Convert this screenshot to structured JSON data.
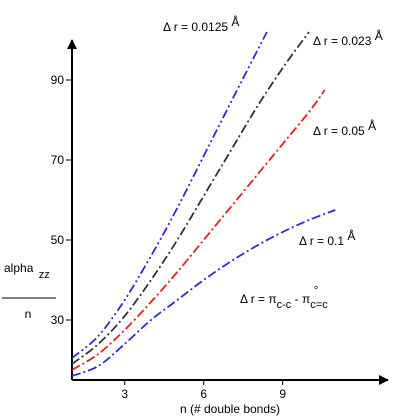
{
  "chart_data": {
    "type": "line",
    "xlabel": "n (# double bonds)",
    "ylabel_top": "alpha",
    "ylabel_top_sub": "zz",
    "ylabel_bottom": "n",
    "xlim": [
      1,
      13
    ],
    "ylim": [
      15,
      100
    ],
    "x_ticks": [
      3,
      6,
      9
    ],
    "y_ticks": [
      30,
      50,
      70,
      90
    ],
    "grid": false,
    "series": [
      {
        "name": "Δ r = 0.0125 Å",
        "color": "#2a2ad6",
        "dash": "9,3,2,3,2,3",
        "x": [
          1,
          2,
          3,
          4,
          5,
          6,
          7,
          8.4
        ],
        "y": [
          20.5,
          26,
          35,
          46,
          58,
          71,
          84,
          102
        ]
      },
      {
        "name": "Δ r = 0.023 Å",
        "color": "#333333",
        "dash": "9,3,2,3",
        "x": [
          1,
          2,
          3,
          4,
          5,
          6,
          7,
          8,
          9,
          10
        ],
        "y": [
          19,
          24,
          31,
          40,
          50,
          61,
          72,
          83,
          93,
          102
        ]
      },
      {
        "name": "Δ r = 0.05 Å",
        "color": "#e02020",
        "dash": "9,3,2,3",
        "x": [
          1,
          2,
          3,
          4,
          5,
          6,
          7,
          8,
          9,
          10,
          10.6
        ],
        "y": [
          17.5,
          21.5,
          27.5,
          34.5,
          42,
          50,
          58,
          66,
          74,
          82,
          87.5
        ]
      },
      {
        "name": "Δ r = 0.1 Å",
        "color": "#2a2ad6",
        "dash": "9,3,2,3",
        "x": [
          1,
          2,
          3,
          4,
          5,
          6,
          7,
          8,
          9,
          10,
          11
        ],
        "y": [
          16,
          18.5,
          24,
          30,
          35,
          40,
          44.5,
          48.5,
          52,
          55,
          57.5
        ]
      }
    ],
    "annotations": [
      {
        "parts": [
          "Δ r = 0.0125 ",
          "Å"
        ],
        "series": 0
      },
      {
        "parts": [
          "Δ r = 0.023 ",
          "Å"
        ],
        "series": 1
      },
      {
        "parts": [
          "Δ r = 0.05 ",
          "Å"
        ],
        "series": 2
      },
      {
        "parts": [
          "Δ r = 0.1 ",
          "Å"
        ],
        "series": 3
      },
      {
        "parts": [
          "Δ r = π",
          "c-c",
          " - π",
          "c=c",
          "°"
        ],
        "series": null
      }
    ]
  }
}
